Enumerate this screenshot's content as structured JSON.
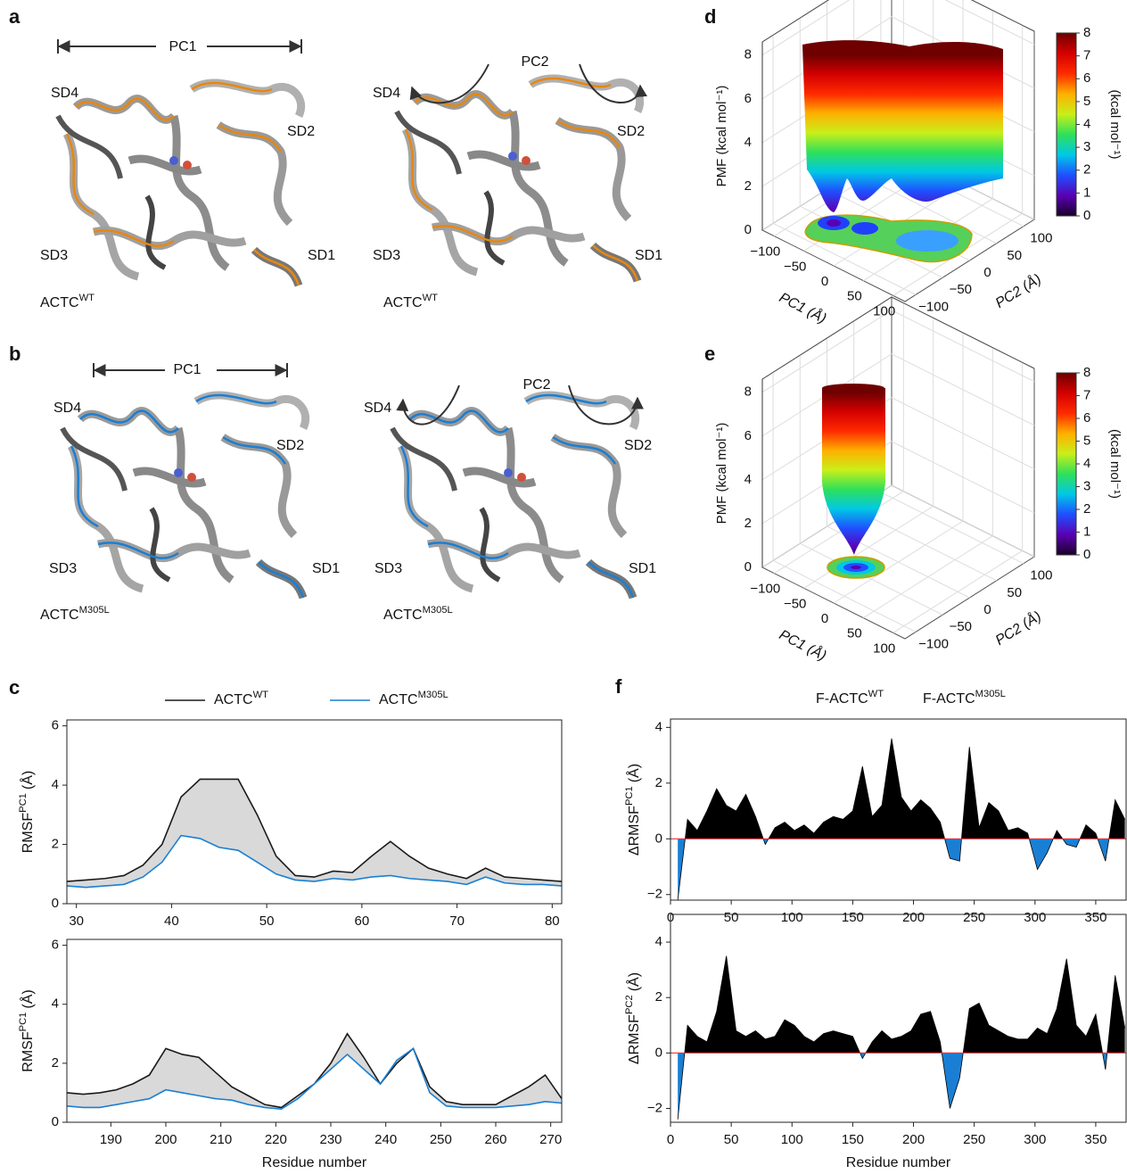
{
  "structures": [
    {
      "letter": "a",
      "accent_color": "#e8870e",
      "name_color": "#111111",
      "views": [
        {
          "motion": "PC1",
          "domains": [
            "SD4",
            "SD2",
            "SD3",
            "SD1"
          ],
          "name": "ACTC",
          "name_superscript": "WT"
        },
        {
          "motion": "PC2",
          "domains": [
            "SD4",
            "SD2",
            "SD3",
            "SD1"
          ],
          "name": "ACTC",
          "name_superscript": "WT"
        }
      ]
    },
    {
      "letter": "b",
      "accent_color": "#1a7fd4",
      "name_color": "#1a7fd4",
      "views": [
        {
          "motion": "PC1",
          "domains": [
            "SD4",
            "SD2",
            "SD3",
            "SD1"
          ],
          "name": "ACTC",
          "name_superscript": "M305L"
        },
        {
          "motion": "PC2",
          "domains": [
            "SD4",
            "SD2",
            "SD3",
            "SD1"
          ],
          "name": "ACTC",
          "name_superscript": "M305L"
        }
      ]
    }
  ],
  "chart_data": [
    {
      "type": "line",
      "panel": "c",
      "x": [
        29,
        31,
        33,
        35,
        37,
        39,
        41,
        43,
        45,
        47,
        49,
        51,
        53,
        55,
        57,
        59,
        61,
        63,
        65,
        67,
        69,
        71,
        73,
        75,
        77,
        79,
        81
      ],
      "series": [
        {
          "name": "ACTC",
          "name_superscript": "WT",
          "color": "#1a1a1a",
          "values": [
            0.75,
            0.8,
            0.85,
            0.95,
            1.3,
            2.0,
            3.6,
            4.2,
            4.2,
            4.2,
            3.0,
            1.6,
            0.95,
            0.9,
            1.1,
            1.05,
            1.6,
            2.1,
            1.6,
            1.2,
            1.0,
            0.85,
            1.2,
            0.9,
            0.85,
            0.8,
            0.75
          ]
        },
        {
          "name": "ACTC",
          "name_superscript": "M305L",
          "color": "#1a7fd4",
          "values": [
            0.6,
            0.55,
            0.6,
            0.65,
            0.9,
            1.4,
            2.3,
            2.2,
            1.9,
            1.8,
            1.4,
            1.0,
            0.8,
            0.75,
            0.85,
            0.8,
            0.9,
            0.95,
            0.85,
            0.8,
            0.75,
            0.65,
            0.9,
            0.7,
            0.65,
            0.65,
            0.6
          ]
        }
      ],
      "fill_color": "#d9d9d9",
      "xlim": [
        29,
        81
      ],
      "xticks": [
        30,
        40,
        50,
        60,
        70,
        80
      ],
      "ylim": [
        0,
        6.2
      ],
      "yticks": [
        0,
        2,
        4,
        6
      ],
      "ylabel": "RMSF",
      "ylabel_superscript": "PC1",
      "ylabel_unit": "(Å)"
    },
    {
      "type": "line",
      "x": [
        182,
        185,
        188,
        191,
        194,
        197,
        200,
        203,
        206,
        209,
        212,
        215,
        218,
        221,
        224,
        227,
        230,
        233,
        236,
        239,
        242,
        245,
        248,
        251,
        254,
        257,
        260,
        263,
        266,
        269,
        272
      ],
      "series": [
        {
          "color": "#1a1a1a",
          "values": [
            1.0,
            0.95,
            1.0,
            1.1,
            1.3,
            1.6,
            2.5,
            2.3,
            2.2,
            1.7,
            1.2,
            0.9,
            0.6,
            0.5,
            0.9,
            1.3,
            2.0,
            3.0,
            2.2,
            1.3,
            2.0,
            2.5,
            1.2,
            0.7,
            0.6,
            0.6,
            0.6,
            0.9,
            1.2,
            1.6,
            0.8
          ]
        },
        {
          "color": "#1a7fd4",
          "values": [
            0.55,
            0.5,
            0.5,
            0.6,
            0.7,
            0.8,
            1.1,
            1.0,
            0.9,
            0.8,
            0.75,
            0.6,
            0.5,
            0.45,
            0.8,
            1.3,
            1.8,
            2.3,
            1.8,
            1.3,
            2.1,
            2.5,
            1.0,
            0.55,
            0.5,
            0.5,
            0.5,
            0.55,
            0.6,
            0.7,
            0.65
          ]
        }
      ],
      "fill_color": "#d9d9d9",
      "xlim": [
        182,
        272
      ],
      "xticks": [
        190,
        200,
        210,
        220,
        230,
        240,
        250,
        260,
        270
      ],
      "ylim": [
        0,
        6.2
      ],
      "yticks": [
        0,
        2,
        4,
        6
      ],
      "ylabel": "RMSF",
      "ylabel_superscript": "PC1",
      "ylabel_unit": "(Å)",
      "xlabel": "Residue number"
    },
    {
      "type": "surface3d",
      "panel": "d",
      "zlabel": "PMF (kcal mol⁻¹)",
      "xlabel": "PC1 (Å)",
      "ylabel": "PC2 (Å)",
      "xlim": [
        -120,
        120
      ],
      "ylim": [
        -120,
        120
      ],
      "zlim": [
        0,
        8.6
      ],
      "xticks": [
        {
          "value": -100,
          "label": "−100"
        },
        {
          "value": -50,
          "label": "−50"
        },
        0,
        50,
        100
      ],
      "yticks": [
        {
          "value": -100,
          "label": "−100"
        },
        {
          "value": -50,
          "label": "−50"
        },
        0,
        50,
        100
      ],
      "zticks": [
        0,
        2,
        4,
        6,
        8
      ],
      "clim": [
        0,
        8
      ],
      "cticks": [
        0,
        1,
        2,
        3,
        4,
        5,
        6,
        7,
        8
      ],
      "clabel": "(kcal mol⁻¹)",
      "colormap": [
        "#1a0026",
        "#5a00b4",
        "#1f4fff",
        "#00c8e6",
        "#2ee05a",
        "#c8ef1a",
        "#ffb000",
        "#ff2a00",
        "#d40000",
        "#6e0000"
      ],
      "grid": true
    },
    {
      "type": "surface3d",
      "panel": "e",
      "zlabel": "PMF (kcal mol⁻¹)",
      "xlabel": "PC1 (Å)",
      "ylabel": "PC2 (Å)",
      "xlim": [
        -120,
        120
      ],
      "ylim": [
        -120,
        120
      ],
      "zlim": [
        0,
        8.6
      ],
      "xticks": [
        {
          "value": -100,
          "label": "−100"
        },
        {
          "value": -50,
          "label": "−50"
        },
        0,
        50,
        100
      ],
      "yticks": [
        {
          "value": -100,
          "label": "−100"
        },
        {
          "value": -50,
          "label": "−50"
        },
        0,
        50,
        100
      ],
      "zticks": [
        0,
        2,
        4,
        6,
        8
      ],
      "clim": [
        0,
        8
      ],
      "cticks": [
        0,
        1,
        2,
        3,
        4,
        5,
        6,
        7,
        8
      ],
      "clabel": "(kcal mol⁻¹)",
      "colormap": [
        "#1a0026",
        "#5a00b4",
        "#1f4fff",
        "#00c8e6",
        "#2ee05a",
        "#c8ef1a",
        "#ffb000",
        "#ff2a00",
        "#d40000",
        "#6e0000"
      ],
      "grid": true
    },
    {
      "type": "area",
      "panel": "f",
      "legend": [
        {
          "text": "F-ACTC",
          "superscript": "WT",
          "color": "#111111"
        },
        {
          "text": "F-ACTC",
          "superscript": "M305L",
          "color": "#1a7fd4"
        }
      ],
      "x": [
        6,
        14,
        22,
        30,
        38,
        46,
        54,
        62,
        70,
        78,
        86,
        94,
        102,
        110,
        118,
        126,
        134,
        142,
        150,
        158,
        166,
        174,
        182,
        190,
        198,
        206,
        214,
        222,
        230,
        238,
        246,
        254,
        262,
        270,
        278,
        286,
        294,
        302,
        310,
        318,
        326,
        334,
        342,
        350,
        358,
        366,
        374
      ],
      "values": [
        -2.2,
        0.7,
        0.3,
        1.0,
        1.8,
        1.2,
        1.0,
        1.6,
        0.8,
        -0.2,
        0.4,
        0.6,
        0.3,
        0.5,
        0.2,
        0.6,
        0.8,
        0.7,
        1.0,
        2.6,
        0.8,
        1.2,
        3.6,
        1.5,
        1.0,
        1.4,
        1.1,
        0.6,
        -0.7,
        -0.8,
        3.3,
        0.4,
        1.3,
        1.0,
        0.3,
        0.4,
        0.2,
        -1.1,
        -0.5,
        0.3,
        -0.2,
        -0.3,
        0.5,
        0.2,
        -0.8,
        1.4,
        0.7
      ],
      "positive_color": "#000000",
      "negative_color": "#1a7fd4",
      "zero_line_color": "#e8303a",
      "xlim": [
        0,
        375
      ],
      "xticks": [
        0,
        50,
        100,
        150,
        200,
        250,
        300,
        350
      ],
      "ylim": [
        -2.2,
        4.3
      ],
      "yticks": [
        {
          "value": -2,
          "label": "−2"
        },
        0,
        2,
        4
      ],
      "ylabel": "ΔRMSF",
      "ylabel_superscript": "PC1",
      "ylabel_unit": "(Å)"
    },
    {
      "type": "area",
      "x": [
        6,
        14,
        22,
        30,
        38,
        46,
        54,
        62,
        70,
        78,
        86,
        94,
        102,
        110,
        118,
        126,
        134,
        142,
        150,
        158,
        166,
        174,
        182,
        190,
        198,
        206,
        214,
        222,
        230,
        238,
        246,
        254,
        262,
        270,
        278,
        286,
        294,
        302,
        310,
        318,
        326,
        334,
        342,
        350,
        358,
        366,
        374
      ],
      "values": [
        -2.4,
        1.0,
        0.6,
        0.4,
        1.5,
        3.5,
        0.8,
        0.6,
        0.8,
        0.5,
        0.6,
        1.2,
        1.0,
        0.6,
        0.4,
        0.7,
        0.8,
        0.7,
        0.6,
        -0.2,
        0.4,
        0.8,
        0.5,
        0.6,
        0.8,
        1.4,
        1.5,
        0.4,
        -2.0,
        -0.9,
        1.6,
        1.8,
        1.0,
        0.8,
        0.6,
        0.5,
        0.5,
        0.9,
        0.7,
        1.6,
        3.4,
        1.0,
        0.6,
        1.4,
        -0.6,
        2.8,
        0.9
      ],
      "positive_color": "#000000",
      "negative_color": "#1a7fd4",
      "zero_line_color": "#e8303a",
      "xlim": [
        0,
        375
      ],
      "xticks": [
        0,
        50,
        100,
        150,
        200,
        250,
        300,
        350
      ],
      "ylim": [
        -2.5,
        5
      ],
      "yticks": [
        {
          "value": -2,
          "label": "−2"
        },
        0,
        2,
        4
      ],
      "ylabel": "ΔRMSF",
      "ylabel_superscript": "PC2",
      "ylabel_unit": "(Å)",
      "xlabel": "Residue number"
    }
  ]
}
